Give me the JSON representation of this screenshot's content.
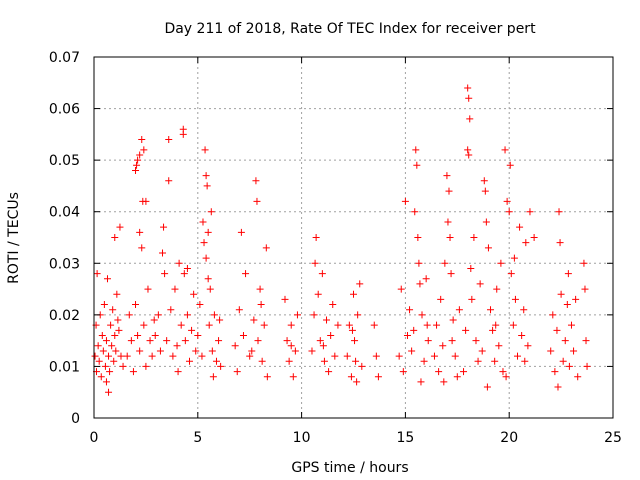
{
  "chart_data": {
    "type": "scatter",
    "title": "Day 211 of 2018, Rate Of TEC Index for receiver pert",
    "xlabel": "GPS time / hours",
    "ylabel": "ROTI / TECUs",
    "xlim": [
      0,
      25
    ],
    "ylim": [
      0,
      0.07
    ],
    "xticks": [
      0,
      5,
      10,
      15,
      20,
      25
    ],
    "xtick_labels": [
      "0",
      "5",
      "10",
      "15",
      "20",
      "25"
    ],
    "yticks": [
      0,
      0.01,
      0.02,
      0.03,
      0.04,
      0.05,
      0.06,
      0.07
    ],
    "ytick_labels": [
      "0",
      "0.01",
      "0.02",
      "0.03",
      "0.04",
      "0.05",
      "0.06",
      "0.07"
    ],
    "grid": true,
    "marker": "+",
    "color": "#ff0000",
    "series": [
      {
        "name": "ROTI",
        "points": [
          [
            0.05,
            0.012
          ],
          [
            0.1,
            0.018
          ],
          [
            0.12,
            0.009
          ],
          [
            0.15,
            0.028
          ],
          [
            0.2,
            0.014
          ],
          [
            0.25,
            0.011
          ],
          [
            0.3,
            0.02
          ],
          [
            0.35,
            0.008
          ],
          [
            0.4,
            0.016
          ],
          [
            0.45,
            0.013
          ],
          [
            0.5,
            0.022
          ],
          [
            0.55,
            0.01
          ],
          [
            0.6,
            0.015
          ],
          [
            0.65,
            0.027
          ],
          [
            0.7,
            0.012
          ],
          [
            0.75,
            0.009
          ],
          [
            0.8,
            0.018
          ],
          [
            0.85,
            0.014
          ],
          [
            0.9,
            0.021
          ],
          [
            0.95,
            0.011
          ],
          [
            1.0,
            0.016
          ],
          [
            1.0,
            0.035
          ],
          [
            1.05,
            0.013
          ],
          [
            1.1,
            0.024
          ],
          [
            1.15,
            0.019
          ],
          [
            1.2,
            0.017
          ],
          [
            1.25,
            0.037
          ],
          [
            1.3,
            0.012
          ],
          [
            0.7,
            0.005
          ],
          [
            0.6,
            0.007
          ],
          [
            1.4,
            0.01
          ],
          [
            1.6,
            0.012
          ],
          [
            1.7,
            0.02
          ],
          [
            1.8,
            0.015
          ],
          [
            1.9,
            0.009
          ],
          [
            2.0,
            0.022
          ],
          [
            2.1,
            0.016
          ],
          [
            2.2,
            0.013
          ],
          [
            2.3,
            0.033
          ],
          [
            2.3,
            0.054
          ],
          [
            2.35,
            0.042
          ],
          [
            2.4,
            0.018
          ],
          [
            2.5,
            0.01
          ],
          [
            2.6,
            0.025
          ],
          [
            2.7,
            0.015
          ],
          [
            2.8,
            0.012
          ],
          [
            2.9,
            0.019
          ],
          [
            2.05,
            0.049
          ],
          [
            2.1,
            0.05
          ],
          [
            2.0,
            0.048
          ],
          [
            2.2,
            0.051
          ],
          [
            2.4,
            0.052
          ],
          [
            2.2,
            0.036
          ],
          [
            2.5,
            0.042
          ],
          [
            2.95,
            0.016
          ],
          [
            3.1,
            0.02
          ],
          [
            3.2,
            0.013
          ],
          [
            3.3,
            0.032
          ],
          [
            3.35,
            0.037
          ],
          [
            3.4,
            0.028
          ],
          [
            3.5,
            0.015
          ],
          [
            3.6,
            0.046
          ],
          [
            3.6,
            0.054
          ],
          [
            3.7,
            0.021
          ],
          [
            3.8,
            0.012
          ],
          [
            3.9,
            0.025
          ],
          [
            4.0,
            0.014
          ],
          [
            4.1,
            0.03
          ],
          [
            4.2,
            0.018
          ],
          [
            4.3,
            0.055
          ],
          [
            4.3,
            0.056
          ],
          [
            4.35,
            0.028
          ],
          [
            4.4,
            0.015
          ],
          [
            4.5,
            0.02
          ],
          [
            4.6,
            0.011
          ],
          [
            4.7,
            0.017
          ],
          [
            4.8,
            0.024
          ],
          [
            4.9,
            0.013
          ],
          [
            4.05,
            0.009
          ],
          [
            4.5,
            0.029
          ],
          [
            5.0,
            0.016
          ],
          [
            5.1,
            0.022
          ],
          [
            5.2,
            0.012
          ],
          [
            5.3,
            0.034
          ],
          [
            5.35,
            0.052
          ],
          [
            5.4,
            0.047
          ],
          [
            5.45,
            0.045
          ],
          [
            5.5,
            0.036
          ],
          [
            5.55,
            0.018
          ],
          [
            5.6,
            0.025
          ],
          [
            5.7,
            0.013
          ],
          [
            5.8,
            0.02
          ],
          [
            5.9,
            0.011
          ],
          [
            6.0,
            0.015
          ],
          [
            6.1,
            0.01
          ],
          [
            5.25,
            0.038
          ],
          [
            5.4,
            0.031
          ],
          [
            5.5,
            0.027
          ],
          [
            5.65,
            0.04
          ],
          [
            5.75,
            0.008
          ],
          [
            6.05,
            0.019
          ],
          [
            6.8,
            0.014
          ],
          [
            6.9,
            0.009
          ],
          [
            7.0,
            0.021
          ],
          [
            7.1,
            0.036
          ],
          [
            7.2,
            0.016
          ],
          [
            7.3,
            0.028
          ],
          [
            7.5,
            0.012
          ],
          [
            7.7,
            0.019
          ],
          [
            7.8,
            0.046
          ],
          [
            7.85,
            0.042
          ],
          [
            7.9,
            0.015
          ],
          [
            8.0,
            0.025
          ],
          [
            8.1,
            0.011
          ],
          [
            8.2,
            0.018
          ],
          [
            8.3,
            0.033
          ],
          [
            8.35,
            0.008
          ],
          [
            7.6,
            0.013
          ],
          [
            8.05,
            0.022
          ],
          [
            9.2,
            0.023
          ],
          [
            9.3,
            0.015
          ],
          [
            9.4,
            0.011
          ],
          [
            9.5,
            0.018
          ],
          [
            9.6,
            0.008
          ],
          [
            9.7,
            0.013
          ],
          [
            9.8,
            0.02
          ],
          [
            9.5,
            0.014
          ],
          [
            10.5,
            0.013
          ],
          [
            10.6,
            0.02
          ],
          [
            10.7,
            0.035
          ],
          [
            10.8,
            0.024
          ],
          [
            10.9,
            0.015
          ],
          [
            11.0,
            0.028
          ],
          [
            11.1,
            0.011
          ],
          [
            11.2,
            0.019
          ],
          [
            11.3,
            0.009
          ],
          [
            11.4,
            0.016
          ],
          [
            11.5,
            0.022
          ],
          [
            11.6,
            0.012
          ],
          [
            11.75,
            0.018
          ],
          [
            10.65,
            0.03
          ],
          [
            11.05,
            0.014
          ],
          [
            12.2,
            0.012
          ],
          [
            12.3,
            0.018
          ],
          [
            12.4,
            0.008
          ],
          [
            12.5,
            0.024
          ],
          [
            12.55,
            0.015
          ],
          [
            12.6,
            0.011
          ],
          [
            12.7,
            0.02
          ],
          [
            12.8,
            0.026
          ],
          [
            12.9,
            0.01
          ],
          [
            12.45,
            0.017
          ],
          [
            12.65,
            0.007
          ],
          [
            13.5,
            0.018
          ],
          [
            13.6,
            0.012
          ],
          [
            13.7,
            0.008
          ],
          [
            14.7,
            0.012
          ],
          [
            14.8,
            0.025
          ],
          [
            14.9,
            0.009
          ],
          [
            15.0,
            0.042
          ],
          [
            15.1,
            0.016
          ],
          [
            15.2,
            0.021
          ],
          [
            15.3,
            0.013
          ],
          [
            15.4,
            0.017
          ],
          [
            15.5,
            0.052
          ],
          [
            15.55,
            0.049
          ],
          [
            15.6,
            0.035
          ],
          [
            15.65,
            0.03
          ],
          [
            15.7,
            0.026
          ],
          [
            15.8,
            0.02
          ],
          [
            15.9,
            0.011
          ],
          [
            16.0,
            0.027
          ],
          [
            16.1,
            0.015
          ],
          [
            15.45,
            0.04
          ],
          [
            15.75,
            0.007
          ],
          [
            16.05,
            0.018
          ],
          [
            16.4,
            0.012
          ],
          [
            16.5,
            0.018
          ],
          [
            16.6,
            0.009
          ],
          [
            16.7,
            0.023
          ],
          [
            16.8,
            0.014
          ],
          [
            16.9,
            0.03
          ],
          [
            17.0,
            0.047
          ],
          [
            17.05,
            0.038
          ],
          [
            17.1,
            0.044
          ],
          [
            17.15,
            0.035
          ],
          [
            17.2,
            0.028
          ],
          [
            17.3,
            0.019
          ],
          [
            17.4,
            0.012
          ],
          [
            17.5,
            0.008
          ],
          [
            17.6,
            0.021
          ],
          [
            16.85,
            0.007
          ],
          [
            17.25,
            0.015
          ],
          [
            17.8,
            0.009
          ],
          [
            17.9,
            0.017
          ],
          [
            18.0,
            0.064
          ],
          [
            18.05,
            0.062
          ],
          [
            18.1,
            0.058
          ],
          [
            18.0,
            0.052
          ],
          [
            18.05,
            0.051
          ],
          [
            18.15,
            0.029
          ],
          [
            18.2,
            0.023
          ],
          [
            18.3,
            0.035
          ],
          [
            18.4,
            0.015
          ],
          [
            18.5,
            0.011
          ],
          [
            18.6,
            0.026
          ],
          [
            18.7,
            0.013
          ],
          [
            18.8,
            0.046
          ],
          [
            18.85,
            0.044
          ],
          [
            18.9,
            0.038
          ],
          [
            19.0,
            0.033
          ],
          [
            19.1,
            0.021
          ],
          [
            19.2,
            0.017
          ],
          [
            19.3,
            0.011
          ],
          [
            19.4,
            0.025
          ],
          [
            19.5,
            0.014
          ],
          [
            19.6,
            0.03
          ],
          [
            19.7,
            0.009
          ],
          [
            19.8,
            0.052
          ],
          [
            19.9,
            0.042
          ],
          [
            20.0,
            0.04
          ],
          [
            20.05,
            0.049
          ],
          [
            20.1,
            0.028
          ],
          [
            20.2,
            0.018
          ],
          [
            20.3,
            0.023
          ],
          [
            20.4,
            0.012
          ],
          [
            20.5,
            0.037
          ],
          [
            20.6,
            0.016
          ],
          [
            20.7,
            0.021
          ],
          [
            20.8,
            0.034
          ],
          [
            20.9,
            0.014
          ],
          [
            21.0,
            0.04
          ],
          [
            21.2,
            0.035
          ],
          [
            18.95,
            0.006
          ],
          [
            19.35,
            0.018
          ],
          [
            19.85,
            0.008
          ],
          [
            20.25,
            0.031
          ],
          [
            20.75,
            0.011
          ],
          [
            22.0,
            0.013
          ],
          [
            22.1,
            0.02
          ],
          [
            22.2,
            0.009
          ],
          [
            22.3,
            0.017
          ],
          [
            22.4,
            0.04
          ],
          [
            22.45,
            0.034
          ],
          [
            22.5,
            0.024
          ],
          [
            22.6,
            0.011
          ],
          [
            22.7,
            0.015
          ],
          [
            22.8,
            0.022
          ],
          [
            22.9,
            0.01
          ],
          [
            23.0,
            0.018
          ],
          [
            23.1,
            0.013
          ],
          [
            23.2,
            0.023
          ],
          [
            23.3,
            0.008
          ],
          [
            23.6,
            0.03
          ],
          [
            23.65,
            0.025
          ],
          [
            23.7,
            0.015
          ],
          [
            23.75,
            0.01
          ],
          [
            22.35,
            0.006
          ],
          [
            22.85,
            0.028
          ]
        ]
      }
    ]
  }
}
